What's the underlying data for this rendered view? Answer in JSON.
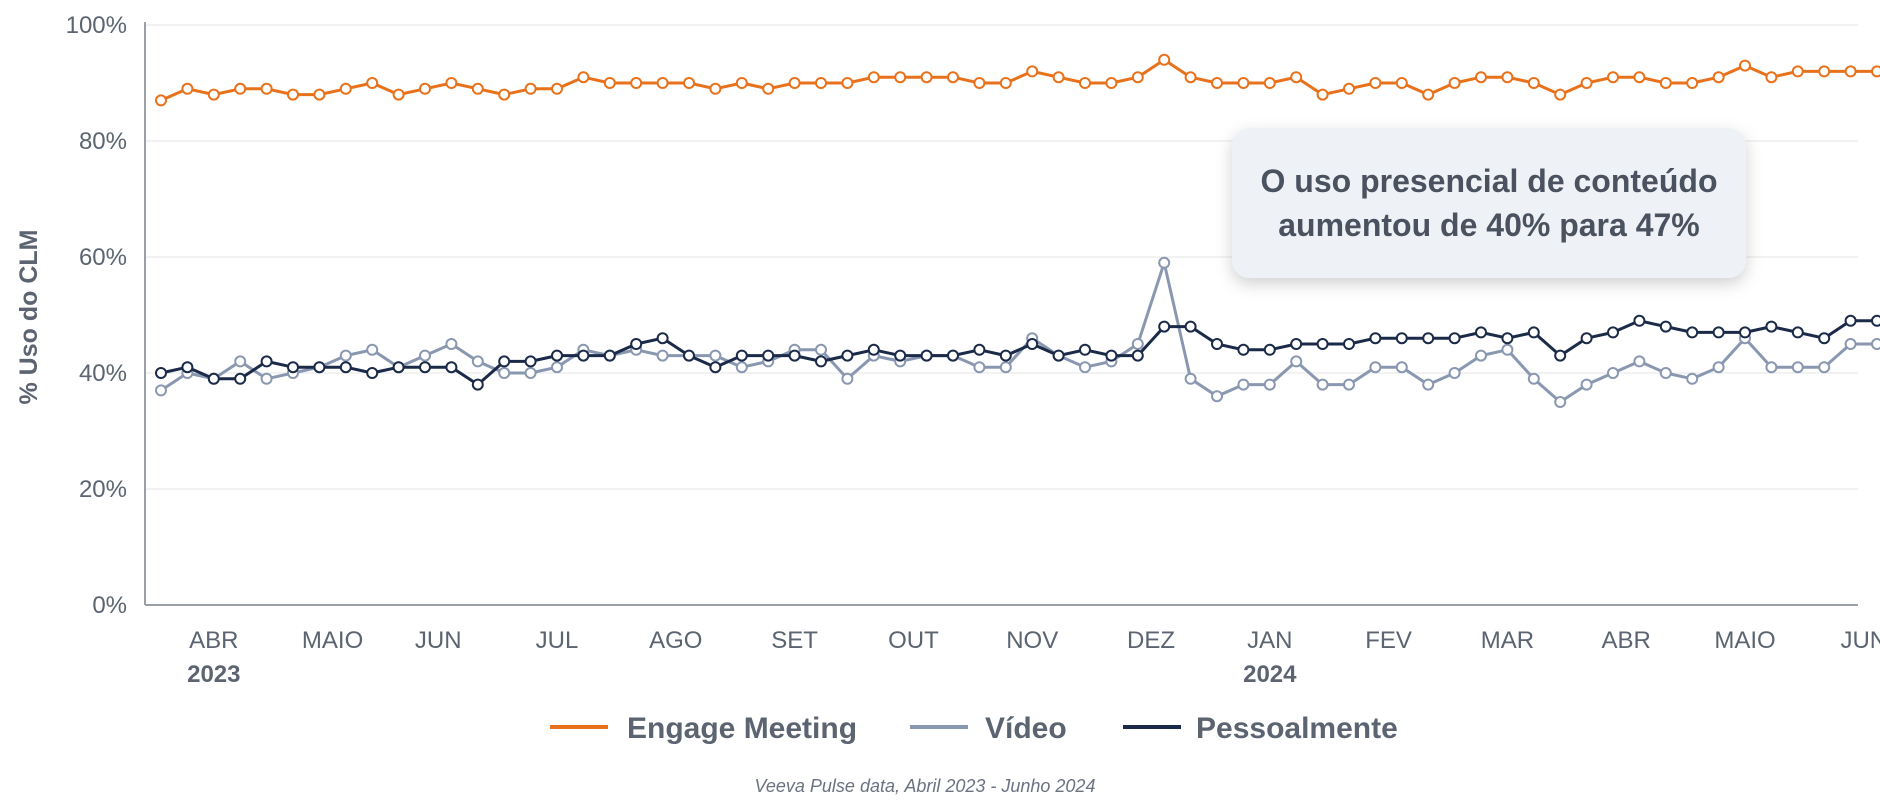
{
  "chart_data": {
    "type": "line",
    "ylabel": "% Uso do CLM",
    "xlabel": "",
    "ylim": [
      0,
      100
    ],
    "y_ticks": [
      "0%",
      "20%",
      "40%",
      "60%",
      "80%",
      "100%"
    ],
    "y_tick_values": [
      0,
      20,
      40,
      60,
      80,
      100
    ],
    "x_month_labels": [
      "ABR",
      "MAIO",
      "JUN",
      "JUL",
      "AGO",
      "SET",
      "OUT",
      "NOV",
      "DEZ",
      "JAN",
      "FEV",
      "MAR",
      "ABR",
      "MAIO",
      "JUN"
    ],
    "x_month_positions": [
      2,
      6.5,
      10.5,
      15,
      19.5,
      24,
      28.5,
      33,
      37.5,
      42,
      46.5,
      51,
      55.5,
      60,
      64.5
    ],
    "year_labels": [
      {
        "label": "2023",
        "at": 2
      },
      {
        "label": "2024",
        "at": 42
      }
    ],
    "x_point_count": 66,
    "grid": true,
    "legend_position": "bottom",
    "series": [
      {
        "name": "Engage Meeting",
        "color": "#e8721c",
        "values": [
          87,
          89,
          88,
          89,
          89,
          88,
          88,
          89,
          90,
          88,
          89,
          90,
          89,
          88,
          89,
          89,
          91,
          90,
          90,
          90,
          90,
          89,
          90,
          89,
          90,
          90,
          90,
          91,
          91,
          91,
          91,
          90,
          90,
          92,
          91,
          90,
          90,
          91,
          94,
          91,
          90,
          90,
          90,
          91,
          88,
          89,
          90,
          90,
          88,
          90,
          91,
          91,
          90,
          88,
          90,
          91,
          91,
          90,
          90,
          91,
          93,
          91,
          92,
          92,
          92,
          92
        ]
      },
      {
        "name": "Vídeo",
        "color": "#8a97b0",
        "values": [
          37,
          40,
          39,
          42,
          39,
          40,
          41,
          43,
          44,
          41,
          43,
          45,
          42,
          40,
          40,
          41,
          44,
          43,
          44,
          43,
          43,
          43,
          41,
          42,
          44,
          44,
          39,
          43,
          42,
          43,
          43,
          41,
          41,
          46,
          43,
          41,
          42,
          45,
          59,
          39,
          36,
          38,
          38,
          42,
          38,
          38,
          41,
          41,
          38,
          40,
          43,
          44,
          39,
          35,
          38,
          40,
          42,
          40,
          39,
          41,
          46,
          41,
          41,
          41,
          45,
          45
        ]
      },
      {
        "name": "Pessoalmente",
        "color": "#1b2a48",
        "values": [
          40,
          41,
          39,
          39,
          42,
          41,
          41,
          41,
          40,
          41,
          41,
          41,
          38,
          42,
          42,
          43,
          43,
          43,
          45,
          46,
          43,
          41,
          43,
          43,
          43,
          42,
          43,
          44,
          43,
          43,
          43,
          44,
          43,
          45,
          43,
          44,
          43,
          43,
          48,
          48,
          45,
          44,
          44,
          45,
          45,
          45,
          46,
          46,
          46,
          46,
          47,
          46,
          47,
          43,
          46,
          47,
          49,
          48,
          47,
          47,
          47,
          48,
          47,
          46,
          49,
          49
        ]
      }
    ],
    "annotation": "O uso presencial de conteúdo aumentou de 40% para 47%",
    "annotation_lines": [
      "O uso presencial de conteúdo",
      "aumentou de 40% para 47%"
    ],
    "source": "Veeva Pulse data, Abril 2023 - Junho 2024"
  }
}
